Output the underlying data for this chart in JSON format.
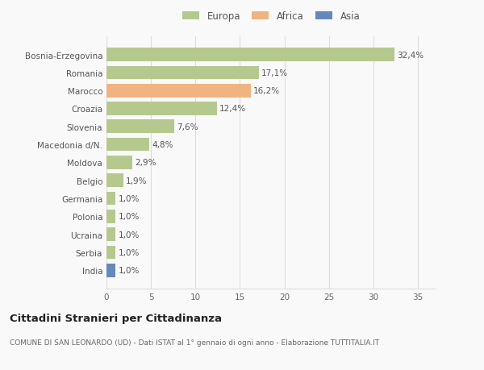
{
  "categories": [
    "Bosnia-Erzegovina",
    "Romania",
    "Marocco",
    "Croazia",
    "Slovenia",
    "Macedonia d/N.",
    "Moldova",
    "Belgio",
    "Germania",
    "Polonia",
    "Ucraina",
    "Serbia",
    "India"
  ],
  "values": [
    32.4,
    17.1,
    16.2,
    12.4,
    7.6,
    4.8,
    2.9,
    1.9,
    1.0,
    1.0,
    1.0,
    1.0,
    1.0
  ],
  "colors": [
    "#b5c98e",
    "#b5c98e",
    "#f0b482",
    "#b5c98e",
    "#b5c98e",
    "#b5c98e",
    "#b5c98e",
    "#b5c98e",
    "#b5c98e",
    "#b5c98e",
    "#b5c98e",
    "#b5c98e",
    "#6688bb"
  ],
  "labels": [
    "32,4%",
    "17,1%",
    "16,2%",
    "12,4%",
    "7,6%",
    "4,8%",
    "2,9%",
    "1,9%",
    "1,0%",
    "1,0%",
    "1,0%",
    "1,0%",
    "1,0%"
  ],
  "legend": [
    {
      "label": "Europa",
      "color": "#b5c98e"
    },
    {
      "label": "Africa",
      "color": "#f0b482"
    },
    {
      "label": "Asia",
      "color": "#6688bb"
    }
  ],
  "xlim": [
    0,
    37
  ],
  "xticks": [
    0,
    5,
    10,
    15,
    20,
    25,
    30,
    35
  ],
  "title": "Cittadini Stranieri per Cittadinanza",
  "subtitle": "COMUNE DI SAN LEONARDO (UD) - Dati ISTAT al 1° gennaio di ogni anno - Elaborazione TUTTITALIA.IT",
  "bg_color": "#f9f9f9",
  "grid_color": "#dddddd",
  "bar_height": 0.75,
  "label_fontsize": 7.5,
  "tick_fontsize": 7.5,
  "legend_fontsize": 8.5
}
